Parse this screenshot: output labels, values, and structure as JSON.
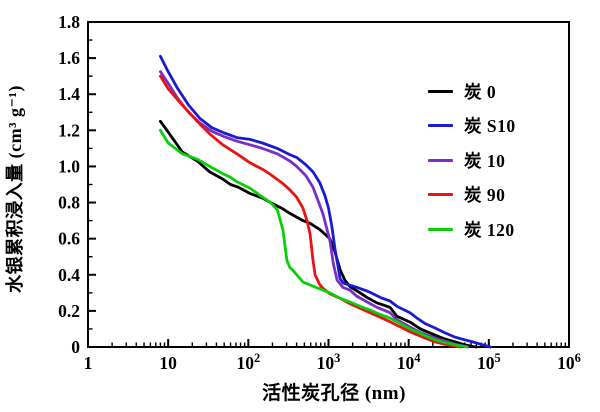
{
  "chart_data": {
    "type": "line",
    "title": "",
    "xlabel": "活性炭孔径 (nm)",
    "ylabel": "水银累积浸入量 (cm³ g⁻¹)",
    "x_scale": "log",
    "xlim": [
      1,
      1000000
    ],
    "ylim": [
      0,
      1.8
    ],
    "y_major_step": 0.2,
    "y_minor_step": 0.1,
    "grid": "off",
    "legend_position": "inside-upper-right",
    "x_ticks": [
      {
        "base": "1",
        "sup": ""
      },
      {
        "base": "10",
        "sup": ""
      },
      {
        "base": "10",
        "sup": "2"
      },
      {
        "base": "10",
        "sup": "3"
      },
      {
        "base": "10",
        "sup": "4"
      },
      {
        "base": "10",
        "sup": "5"
      },
      {
        "base": "10",
        "sup": "6"
      }
    ],
    "y_ticks": [
      "0",
      "0.2",
      "0.4",
      "0.6",
      "0.8",
      "1.0",
      "1.2",
      "1.4",
      "1.6",
      "1.8"
    ],
    "series": [
      {
        "name": "炭 0",
        "color": "#000000",
        "points": [
          [
            8,
            1.25
          ],
          [
            10,
            1.19
          ],
          [
            15,
            1.08
          ],
          [
            23,
            1.03
          ],
          [
            33,
            0.97
          ],
          [
            48,
            0.93
          ],
          [
            60,
            0.9
          ],
          [
            75,
            0.885
          ],
          [
            105,
            0.85
          ],
          [
            150,
            0.825
          ],
          [
            190,
            0.8
          ],
          [
            270,
            0.765
          ],
          [
            330,
            0.74
          ],
          [
            480,
            0.7
          ],
          [
            590,
            0.685
          ],
          [
            780,
            0.65
          ],
          [
            1040,
            0.6
          ],
          [
            1200,
            0.53
          ],
          [
            1390,
            0.43
          ],
          [
            1600,
            0.37
          ],
          [
            1850,
            0.335
          ],
          [
            2470,
            0.3
          ],
          [
            3000,
            0.275
          ],
          [
            4000,
            0.245
          ],
          [
            5850,
            0.22
          ],
          [
            7150,
            0.17
          ],
          [
            10400,
            0.138
          ],
          [
            14000,
            0.1
          ],
          [
            21300,
            0.066
          ],
          [
            28000,
            0.045
          ],
          [
            37800,
            0.028
          ],
          [
            50000,
            0.012
          ],
          [
            63000,
            0.003
          ],
          [
            70000,
            0
          ]
        ]
      },
      {
        "name": "炭 S10",
        "color": "#1a1ad2",
        "points": [
          [
            8,
            1.61
          ],
          [
            10,
            1.525
          ],
          [
            13,
            1.435
          ],
          [
            18,
            1.34
          ],
          [
            25,
            1.265
          ],
          [
            35,
            1.215
          ],
          [
            50,
            1.185
          ],
          [
            72,
            1.16
          ],
          [
            105,
            1.15
          ],
          [
            150,
            1.13
          ],
          [
            230,
            1.1
          ],
          [
            330,
            1.065
          ],
          [
            400,
            1.05
          ],
          [
            520,
            1.01
          ],
          [
            640,
            0.97
          ],
          [
            780,
            0.91
          ],
          [
            900,
            0.84
          ],
          [
            1000,
            0.77
          ],
          [
            1100,
            0.67
          ],
          [
            1200,
            0.55
          ],
          [
            1310,
            0.45
          ],
          [
            1390,
            0.38
          ],
          [
            1520,
            0.355
          ],
          [
            1750,
            0.345
          ],
          [
            2270,
            0.33
          ],
          [
            3020,
            0.31
          ],
          [
            3580,
            0.295
          ],
          [
            4380,
            0.275
          ],
          [
            5850,
            0.255
          ],
          [
            7150,
            0.225
          ],
          [
            10400,
            0.19
          ],
          [
            12700,
            0.16
          ],
          [
            16000,
            0.13
          ],
          [
            21300,
            0.105
          ],
          [
            28000,
            0.08
          ],
          [
            37800,
            0.055
          ],
          [
            50000,
            0.04
          ],
          [
            63000,
            0.028
          ],
          [
            80000,
            0.015
          ],
          [
            105000,
            0
          ]
        ]
      },
      {
        "name": "炭 10",
        "color": "#7a2fc4",
        "points": [
          [
            8,
            1.525
          ],
          [
            10,
            1.46
          ],
          [
            13,
            1.38
          ],
          [
            18,
            1.3
          ],
          [
            25,
            1.24
          ],
          [
            35,
            1.195
          ],
          [
            50,
            1.165
          ],
          [
            72,
            1.14
          ],
          [
            105,
            1.12
          ],
          [
            150,
            1.1
          ],
          [
            230,
            1.07
          ],
          [
            330,
            1.03
          ],
          [
            400,
            1.0
          ],
          [
            520,
            0.95
          ],
          [
            640,
            0.885
          ],
          [
            850,
            0.74
          ],
          [
            1040,
            0.59
          ],
          [
            1150,
            0.46
          ],
          [
            1280,
            0.37
          ],
          [
            1390,
            0.35
          ],
          [
            1520,
            0.33
          ],
          [
            1850,
            0.315
          ],
          [
            2270,
            0.28
          ],
          [
            3020,
            0.25
          ],
          [
            4020,
            0.22
          ],
          [
            5850,
            0.19
          ],
          [
            7150,
            0.15
          ],
          [
            10400,
            0.111
          ],
          [
            14000,
            0.08
          ],
          [
            21300,
            0.05
          ],
          [
            30000,
            0.03
          ],
          [
            37800,
            0.015
          ],
          [
            55000,
            0
          ]
        ]
      },
      {
        "name": "炭 90",
        "color": "#ea1212",
        "points": [
          [
            8,
            1.5
          ],
          [
            10,
            1.43
          ],
          [
            15,
            1.34
          ],
          [
            23,
            1.25
          ],
          [
            33,
            1.18
          ],
          [
            48,
            1.12
          ],
          [
            72,
            1.07
          ],
          [
            105,
            1.02
          ],
          [
            150,
            0.985
          ],
          [
            190,
            0.955
          ],
          [
            270,
            0.905
          ],
          [
            330,
            0.87
          ],
          [
            400,
            0.83
          ],
          [
            480,
            0.77
          ],
          [
            540,
            0.7
          ],
          [
            590,
            0.625
          ],
          [
            640,
            0.48
          ],
          [
            680,
            0.4
          ],
          [
            780,
            0.345
          ],
          [
            850,
            0.325
          ],
          [
            1040,
            0.295
          ],
          [
            1390,
            0.27
          ],
          [
            1850,
            0.24
          ],
          [
            2470,
            0.215
          ],
          [
            3290,
            0.19
          ],
          [
            4400,
            0.165
          ],
          [
            5850,
            0.14
          ],
          [
            7150,
            0.12
          ],
          [
            10400,
            0.085
          ],
          [
            14000,
            0.06
          ],
          [
            21300,
            0.028
          ],
          [
            30000,
            0.012
          ],
          [
            37800,
            0.005
          ],
          [
            44000,
            0
          ]
        ]
      },
      {
        "name": "炭 120",
        "color": "#09cf09",
        "points": [
          [
            8,
            1.2
          ],
          [
            10,
            1.13
          ],
          [
            15,
            1.07
          ],
          [
            23,
            1.04
          ],
          [
            33,
            1.0
          ],
          [
            48,
            0.96
          ],
          [
            60,
            0.94
          ],
          [
            72,
            0.915
          ],
          [
            105,
            0.88
          ],
          [
            150,
            0.83
          ],
          [
            190,
            0.8
          ],
          [
            230,
            0.76
          ],
          [
            270,
            0.65
          ],
          [
            303,
            0.48
          ],
          [
            330,
            0.44
          ],
          [
            360,
            0.425
          ],
          [
            480,
            0.36
          ],
          [
            700,
            0.33
          ],
          [
            1040,
            0.3
          ],
          [
            1400,
            0.27
          ],
          [
            1850,
            0.25
          ],
          [
            2500,
            0.225
          ],
          [
            3290,
            0.205
          ],
          [
            4400,
            0.18
          ],
          [
            5850,
            0.16
          ],
          [
            7150,
            0.14
          ],
          [
            10400,
            0.1
          ],
          [
            14000,
            0.075
          ],
          [
            21300,
            0.04
          ],
          [
            28000,
            0.025
          ],
          [
            37800,
            0.012
          ],
          [
            53000,
            0
          ]
        ]
      }
    ]
  }
}
